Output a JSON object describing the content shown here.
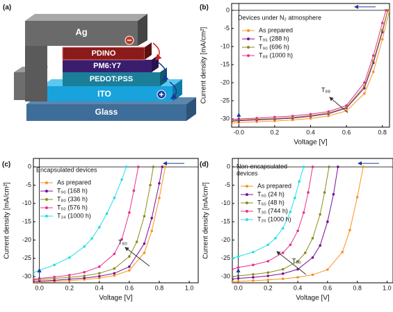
{
  "device_diagram": {
    "label": "(a)",
    "layers": [
      "Ag",
      "PDINO",
      "PM6:Y7",
      "PEDOT:PSS",
      "ITO",
      "Glass"
    ]
  },
  "chart_data": [
    {
      "type": "line",
      "panel_label": "(b)",
      "legend_title": [
        "Devices under N₂ atmosphere"
      ],
      "legend": "upper left",
      "xlabel": "Voltage [V]",
      "ylabel": "Current density [mA/cm²]",
      "callout": "T₈₈",
      "xlim": [
        -0.04,
        0.84
      ],
      "ylim": [
        -32.3,
        1.9
      ],
      "xticks": [
        {
          "value": 0,
          "label": "-0.0"
        },
        0.2,
        0.4,
        0.6,
        0.8
      ],
      "yticks": [
        0,
        -5,
        -10,
        -15,
        -20,
        -25,
        -30
      ],
      "series": [
        {
          "name": "As prepared",
          "color": "#f7931e",
          "x": [
            -0.04,
            0,
            0.1,
            0.2,
            0.3,
            0.4,
            0.5,
            0.6,
            0.7,
            0.75,
            0.8,
            0.84
          ],
          "values": [
            -31.2,
            -31.0,
            -30.8,
            -30.6,
            -30.3,
            -29.9,
            -29.2,
            -27.8,
            -23.0,
            -17.0,
            -8.0,
            0
          ]
        },
        {
          "name": "T₉₅ (288 h)",
          "color": "#7b0d8e",
          "x": [
            -0.04,
            0,
            0.1,
            0.2,
            0.3,
            0.4,
            0.5,
            0.6,
            0.7,
            0.75,
            0.8,
            0.83
          ],
          "values": [
            -30.7,
            -30.5,
            -30.3,
            -30.1,
            -29.8,
            -29.3,
            -28.6,
            -27.0,
            -21.5,
            -14.5,
            -6.0,
            0
          ]
        },
        {
          "name": "T₉₀ (696 h)",
          "color": "#8d8a1c",
          "x": [
            -0.04,
            0,
            0.1,
            0.2,
            0.3,
            0.4,
            0.5,
            0.6,
            0.7,
            0.75,
            0.8,
            0.83
          ],
          "values": [
            -30.5,
            -30.3,
            -30.1,
            -29.9,
            -29.6,
            -29.1,
            -28.4,
            -26.8,
            -21.0,
            -14.0,
            -5.5,
            0
          ]
        },
        {
          "name": "T₈₈ (1000 h)",
          "color": "#e8308a",
          "x": [
            -0.04,
            0,
            0.1,
            0.2,
            0.3,
            0.4,
            0.5,
            0.6,
            0.7,
            0.75,
            0.8,
            0.82
          ],
          "values": [
            -30.2,
            -30.0,
            -29.8,
            -29.5,
            -29.2,
            -28.7,
            -28.0,
            -26.3,
            -20.0,
            -12.5,
            -3.5,
            0
          ]
        }
      ]
    },
    {
      "type": "line",
      "panel_label": "(c)",
      "legend_title": [
        "Encapsulated devices"
      ],
      "legend": "upper left",
      "xlabel": "Voltage [V]",
      "ylabel": "Current density [mA/cm²]",
      "callout": "T₈₀",
      "xlim": [
        -0.04,
        1.06
      ],
      "ylim": [
        -31.7,
        2.3
      ],
      "xticks": [
        {
          "value": 0,
          "label": "0.0"
        },
        0.2,
        0.4,
        0.6,
        0.8,
        {
          "value": 1,
          "label": "1.0"
        }
      ],
      "yticks": [
        0,
        -5,
        -10,
        -15,
        -20,
        -25,
        -30
      ],
      "series": [
        {
          "name": "As prepared",
          "color": "#f7931e",
          "x": [
            -0.04,
            0,
            0.1,
            0.2,
            0.3,
            0.4,
            0.5,
            0.6,
            0.7,
            0.75,
            0.8,
            0.84
          ],
          "values": [
            -31.6,
            -31.5,
            -31.3,
            -31.1,
            -30.8,
            -30.4,
            -29.7,
            -28.3,
            -23.5,
            -17.5,
            -8.5,
            0
          ]
        },
        {
          "name": "T₉₀ (168 h)",
          "color": "#7b0d8e",
          "x": [
            -0.04,
            0,
            0.1,
            0.2,
            0.3,
            0.4,
            0.5,
            0.6,
            0.7,
            0.75,
            0.8,
            0.82
          ],
          "values": [
            -31.3,
            -31.2,
            -31.0,
            -30.7,
            -30.4,
            -29.9,
            -29.1,
            -27.3,
            -21.0,
            -14.0,
            -4.5,
            0
          ]
        },
        {
          "name": "T₈₀ (336 h)",
          "color": "#8d8a1c",
          "x": [
            -0.04,
            0,
            0.1,
            0.2,
            0.3,
            0.4,
            0.5,
            0.6,
            0.65,
            0.7,
            0.74,
            0.76
          ],
          "values": [
            -30.9,
            -30.8,
            -30.5,
            -30.2,
            -29.8,
            -29.1,
            -27.8,
            -24.5,
            -20.5,
            -13.5,
            -5.0,
            0
          ]
        },
        {
          "name": "T₅₀ (576 h)",
          "color": "#e8308a",
          "x": [
            -0.04,
            0,
            0.1,
            0.2,
            0.3,
            0.4,
            0.5,
            0.55,
            0.6,
            0.63,
            0.66
          ],
          "values": [
            -30.7,
            -30.5,
            -30.1,
            -29.6,
            -28.8,
            -27.3,
            -23.8,
            -19.8,
            -12.5,
            -6.5,
            0
          ]
        },
        {
          "name": "T₃₄ (1000 h)",
          "color": "#22dde6",
          "x": [
            -0.04,
            0,
            0.1,
            0.2,
            0.3,
            0.35,
            0.4,
            0.45,
            0.5,
            0.55,
            0.58
          ],
          "values": [
            -28.9,
            -28.3,
            -26.8,
            -24.8,
            -21.8,
            -19.6,
            -16.5,
            -12.8,
            -8.5,
            -3.5,
            0
          ]
        }
      ]
    },
    {
      "type": "line",
      "panel_label": "(d)",
      "legend_title": [
        "Non-encapsulated",
        "devices"
      ],
      "legend": "upper left",
      "xlabel": "Voltage [V]",
      "ylabel": "Current density [mA/cm²]",
      "callout": "T₆₀",
      "xlim": [
        -0.04,
        1.04
      ],
      "ylim": [
        -31.7,
        2.3
      ],
      "xticks": [
        {
          "value": 0,
          "label": "0.0"
        },
        0.2,
        0.4,
        0.6,
        0.8,
        {
          "value": 1,
          "label": "1.0"
        }
      ],
      "yticks": [
        0,
        -5,
        -10,
        -15,
        -20,
        -25,
        -30
      ],
      "series": [
        {
          "name": "As prepared",
          "color": "#f7931e",
          "x": [
            -0.04,
            0,
            0.1,
            0.2,
            0.3,
            0.4,
            0.5,
            0.6,
            0.7,
            0.75,
            0.8,
            0.84
          ],
          "values": [
            -31.4,
            -31.3,
            -31.1,
            -30.9,
            -30.6,
            -30.2,
            -29.5,
            -28.1,
            -23.3,
            -17.3,
            -8.3,
            0
          ]
        },
        {
          "name": "T₆₀ (24 h)",
          "color": "#7b0d8e",
          "x": [
            -0.04,
            0,
            0.1,
            0.2,
            0.3,
            0.4,
            0.5,
            0.55,
            0.6,
            0.64,
            0.67
          ],
          "values": [
            -30.7,
            -30.5,
            -30.2,
            -29.8,
            -29.2,
            -28.0,
            -24.8,
            -21.5,
            -15.0,
            -7.5,
            0
          ]
        },
        {
          "name": "T₅₀ (48 h)",
          "color": "#8d8a1c",
          "x": [
            -0.04,
            0,
            0.1,
            0.2,
            0.3,
            0.4,
            0.45,
            0.5,
            0.55,
            0.58,
            0.61
          ],
          "values": [
            -30.0,
            -29.8,
            -29.4,
            -28.9,
            -28.0,
            -25.8,
            -23.5,
            -19.5,
            -13.0,
            -7.0,
            0
          ]
        },
        {
          "name": "T₃₀ (744 h)",
          "color": "#e8308a",
          "x": [
            -0.04,
            0,
            0.1,
            0.2,
            0.3,
            0.35,
            0.4,
            0.44,
            0.47,
            0.5
          ],
          "values": [
            -28.0,
            -27.5,
            -26.8,
            -25.8,
            -23.5,
            -21.3,
            -17.5,
            -12.5,
            -7.0,
            0
          ]
        },
        {
          "name": "T₂₆ (1000 h)",
          "color": "#22dde6",
          "x": [
            -0.04,
            0,
            0.1,
            0.2,
            0.25,
            0.3,
            0.35,
            0.38,
            0.41,
            0.44
          ],
          "values": [
            -25.0,
            -24.5,
            -23.3,
            -21.3,
            -19.5,
            -16.8,
            -12.3,
            -8.5,
            -4.0,
            0
          ]
        }
      ]
    }
  ]
}
